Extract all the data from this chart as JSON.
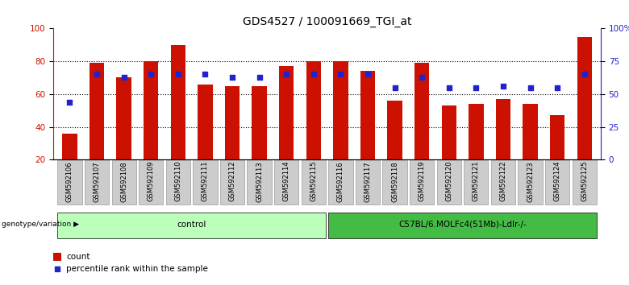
{
  "title": "GDS4527 / 100091669_TGI_at",
  "samples": [
    "GSM592106",
    "GSM592107",
    "GSM592108",
    "GSM592109",
    "GSM592110",
    "GSM592111",
    "GSM592112",
    "GSM592113",
    "GSM592114",
    "GSM592115",
    "GSM592116",
    "GSM592117",
    "GSM592118",
    "GSM592119",
    "GSM592120",
    "GSM592121",
    "GSM592122",
    "GSM592123",
    "GSM592124",
    "GSM592125"
  ],
  "counts": [
    36,
    79,
    70,
    80,
    90,
    66,
    65,
    65,
    77,
    80,
    80,
    74,
    56,
    79,
    53,
    54,
    57,
    54,
    47,
    95
  ],
  "percentile_pct": [
    44,
    65,
    63,
    65,
    65,
    65,
    63,
    63,
    65,
    65,
    65,
    65,
    55,
    63,
    55,
    55,
    56,
    55,
    55,
    65
  ],
  "bar_color": "#cc1100",
  "marker_color": "#2222cc",
  "ylim_left": [
    20,
    100
  ],
  "ylim_right": [
    0,
    100
  ],
  "yticks_left": [
    20,
    40,
    60,
    80,
    100
  ],
  "ytick_labels_left": [
    "20",
    "40",
    "60",
    "80",
    "100"
  ],
  "yticks_right_vals": [
    0,
    25,
    50,
    75,
    100
  ],
  "ytick_labels_right": [
    "0",
    "25",
    "50",
    "75",
    "100%"
  ],
  "groups": [
    {
      "label": "control",
      "start": 0,
      "end": 9,
      "color": "#bbffbb"
    },
    {
      "label": "C57BL/6.MOLFc4(51Mb)-Ldlr-/-",
      "start": 10,
      "end": 19,
      "color": "#44bb44"
    }
  ],
  "group_label_prefix": "genotype/variation",
  "tick_bg_color": "#cccccc",
  "bar_color_legend": "#cc1100",
  "marker_color_legend": "#2222cc",
  "legend_count_label": "count",
  "legend_marker_label": "percentile rank within the sample",
  "title_fontsize": 10,
  "tick_fontsize": 7.5,
  "label_fontsize": 6
}
